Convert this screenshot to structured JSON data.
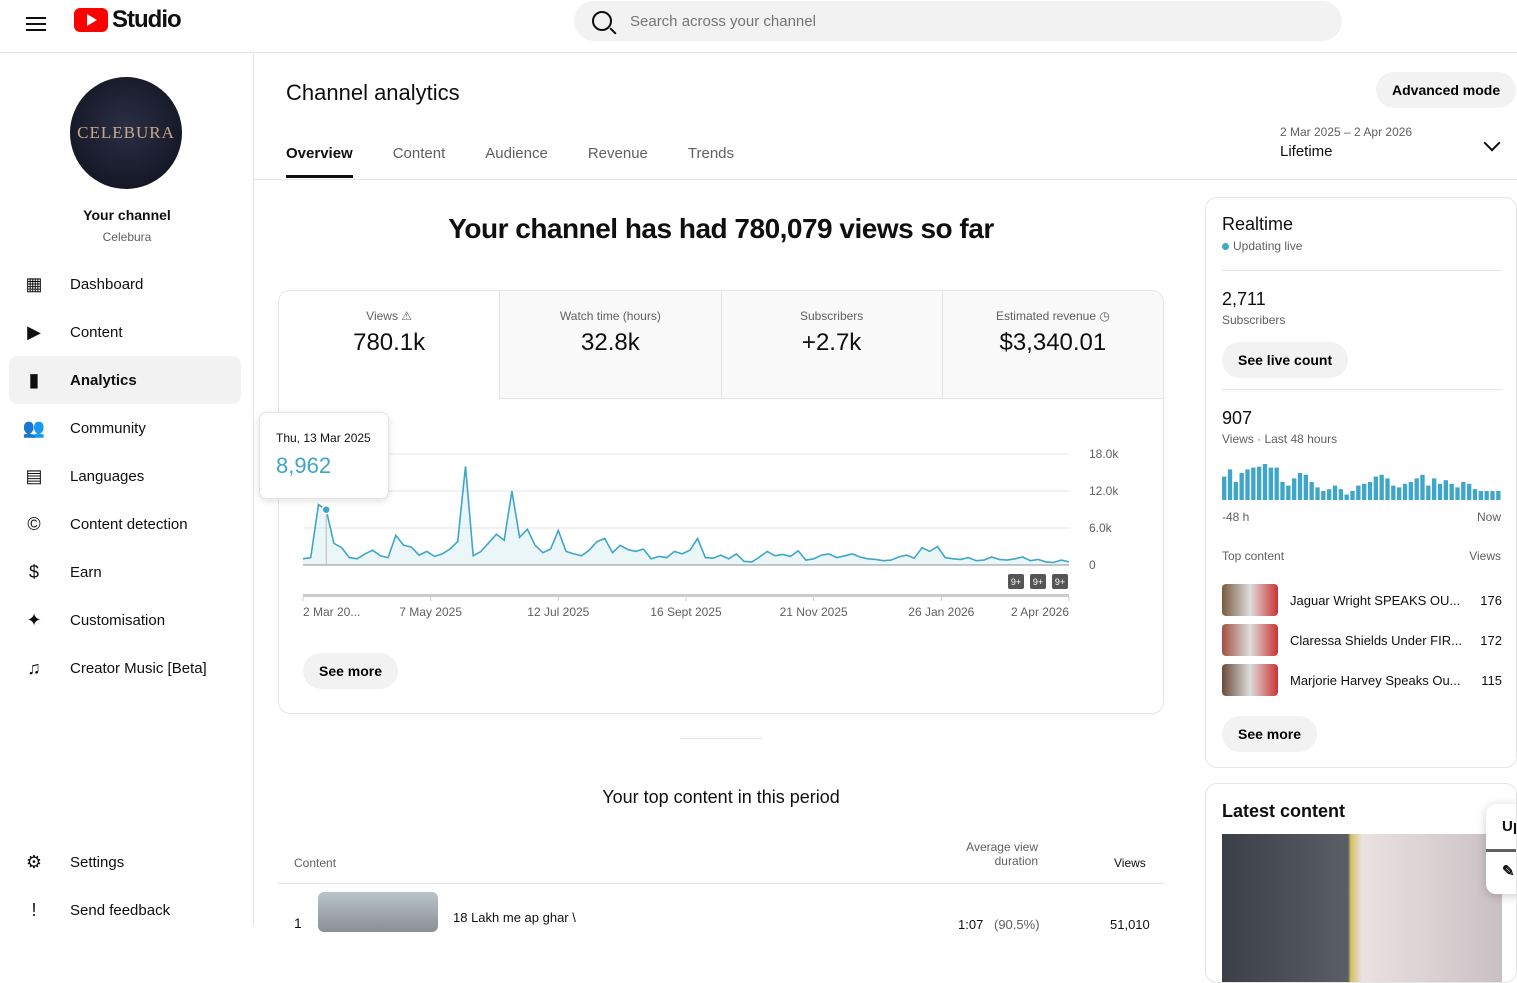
{
  "header": {
    "app_name": "Studio",
    "search_placeholder": "Search across your channel"
  },
  "sidebar": {
    "avatar_text": "CELEBURA",
    "channel_title": "Your channel",
    "channel_name": "Celebura",
    "items": [
      {
        "label": "Dashboard",
        "icon": "dashboard-icon"
      },
      {
        "label": "Content",
        "icon": "content-icon"
      },
      {
        "label": "Analytics",
        "icon": "analytics-icon",
        "active": true
      },
      {
        "label": "Community",
        "icon": "community-icon"
      },
      {
        "label": "Languages",
        "icon": "languages-icon"
      },
      {
        "label": "Content detection",
        "icon": "copyright-icon"
      },
      {
        "label": "Earn",
        "icon": "dollar-icon"
      },
      {
        "label": "Customisation",
        "icon": "magic-wand-icon"
      },
      {
        "label": "Creator Music [Beta]",
        "icon": "music-icon"
      }
    ],
    "bottom": [
      {
        "label": "Settings",
        "icon": "gear-icon"
      },
      {
        "label": "Send feedback",
        "icon": "feedback-icon"
      }
    ]
  },
  "main": {
    "title": "Channel analytics",
    "advanced_mode": "Advanced mode",
    "tabs": [
      "Overview",
      "Content",
      "Audience",
      "Revenue",
      "Trends"
    ],
    "date_range": "2 Mar 2025 – 2 Apr 2026",
    "date_preset": "Lifetime",
    "headline": "Your channel has had 780,079 views so far",
    "kpis": [
      {
        "label": "Views",
        "value": "780.1k"
      },
      {
        "label": "Watch time (hours)",
        "value": "32.8k"
      },
      {
        "label": "Subscribers",
        "value": "+2.7k"
      },
      {
        "label": "Estimated revenue",
        "value": "$3,340.01"
      }
    ],
    "tooltip": {
      "date": "Thu, 13 Mar 2025",
      "value": "8,962"
    },
    "see_more": "See more",
    "badges": [
      "9+",
      "9+",
      "9+"
    ],
    "top_content": {
      "title": "Your top content in this period",
      "col_content": "Content",
      "col_avd": "Average view duration",
      "col_views": "Views",
      "rows": [
        {
          "rank": "1",
          "title": "18 Lakh me ap ghar \\",
          "avd": "1:07",
          "avd_pct": "(90.5%)",
          "views": "51,010"
        }
      ]
    }
  },
  "chart_data": {
    "type": "area",
    "ylim": [
      0,
      18000
    ],
    "yticks": [
      "18.0k",
      "12.0k",
      "6.0k",
      "0"
    ],
    "ytick_values": [
      18000,
      12000,
      6000,
      0
    ],
    "xticks": [
      "2 Mar 20...",
      "7 May 2025",
      "12 Jul 2025",
      "16 Sept 2025",
      "21 Nov 2025",
      "26 Jan 2026",
      "2 Apr 2026"
    ],
    "x_start": "2025-03-02",
    "x_end": "2026-04-02",
    "x_step_days": 4,
    "color": "#3ea6c8",
    "values": [
      1000,
      1200,
      9800,
      8962,
      3500,
      2800,
      1200,
      1000,
      1800,
      2400,
      1500,
      1200,
      4800,
      3200,
      2900,
      1600,
      2200,
      1400,
      1800,
      2600,
      3800,
      16000,
      1500,
      2200,
      3600,
      5000,
      4000,
      12000,
      4500,
      5800,
      3200,
      2000,
      2600,
      5600,
      2200,
      1800,
      1500,
      2400,
      3800,
      4300,
      2000,
      3200,
      2500,
      2200,
      2600,
      1000,
      1400,
      1200,
      2200,
      1800,
      2400,
      4300,
      1200,
      1100,
      1600,
      1000,
      1800,
      600,
      500,
      1300,
      2200,
      1500,
      1700,
      1400,
      2300,
      800,
      1000,
      1600,
      1800,
      1200,
      1500,
      1800,
      1300,
      1000,
      900,
      700,
      800,
      1300,
      1600,
      1100,
      2800,
      2200,
      3000,
      1200,
      1000,
      900,
      1200,
      700,
      800,
      1300,
      900,
      800,
      1000,
      1300,
      700,
      900,
      500,
      400,
      800,
      500
    ]
  },
  "realtime": {
    "title": "Realtime",
    "status": "Updating live",
    "subs_value": "2,711",
    "subs_label": "Subscribers",
    "see_live": "See live count",
    "views_value": "907",
    "views_label": "Views · Last 48 hours",
    "axis_start": "-48 h",
    "axis_end": "Now",
    "hourly": [
      26,
      34,
      20,
      30,
      34,
      36,
      37,
      40,
      36,
      36,
      20,
      16,
      24,
      30,
      28,
      20,
      14,
      10,
      12,
      16,
      12,
      6,
      10,
      16,
      18,
      20,
      26,
      28,
      24,
      16,
      14,
      18,
      20,
      24,
      28,
      16,
      24,
      18,
      22,
      18,
      14,
      20,
      18,
      12,
      10,
      10,
      10,
      10
    ],
    "top_content_label": "Top content",
    "views_col": "Views",
    "items": [
      {
        "title": "Jaguar Wright SPEAKS OU...",
        "views": "176"
      },
      {
        "title": "Claressa Shields Under FIR...",
        "views": "172"
      },
      {
        "title": "Marjorie Harvey Speaks Ou...",
        "views": "115"
      }
    ],
    "see_more": "See more"
  },
  "latest": {
    "title": "Latest content",
    "popup_text": "Up"
  }
}
